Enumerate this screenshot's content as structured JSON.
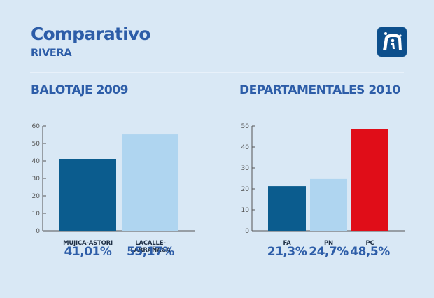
{
  "header": {
    "title": "Comparativo",
    "subtitle": "RIVERA",
    "logo_icon": "institution-logo-icon"
  },
  "colors": {
    "background": "#d9e8f5",
    "text": "#2d5da8",
    "fa": "#0b5c8e",
    "pn": "#afd5f0",
    "pc": "#e00d18",
    "logo": "#0d4f8c"
  },
  "chart_data": [
    {
      "type": "bar",
      "title": "BALOTAJE 2009",
      "categories": [
        "MUJICA-ASTORI",
        "LACALLE-LARRAÑAGA"
      ],
      "values": [
        41.01,
        55.17
      ],
      "value_labels": [
        "41,01%",
        "55,17%"
      ],
      "colors": [
        "#0b5c8e",
        "#afd5f0"
      ],
      "ylim": [
        0,
        60
      ],
      "yticks": [
        0,
        10,
        20,
        30,
        40,
        50,
        60
      ],
      "xlabel": "",
      "ylabel": "",
      "grid": false
    },
    {
      "type": "bar",
      "title": "DEPARTAMENTALES 2010",
      "categories": [
        "FA",
        "PN",
        "PC"
      ],
      "values": [
        21.3,
        24.7,
        48.5
      ],
      "value_labels": [
        "21,3%",
        "24,7%",
        "48,5%"
      ],
      "colors": [
        "#0b5c8e",
        "#afd5f0",
        "#e00d18"
      ],
      "ylim": [
        0,
        50
      ],
      "yticks": [
        0,
        10,
        20,
        30,
        40,
        50
      ],
      "xlabel": "",
      "ylabel": "",
      "grid": false
    }
  ]
}
